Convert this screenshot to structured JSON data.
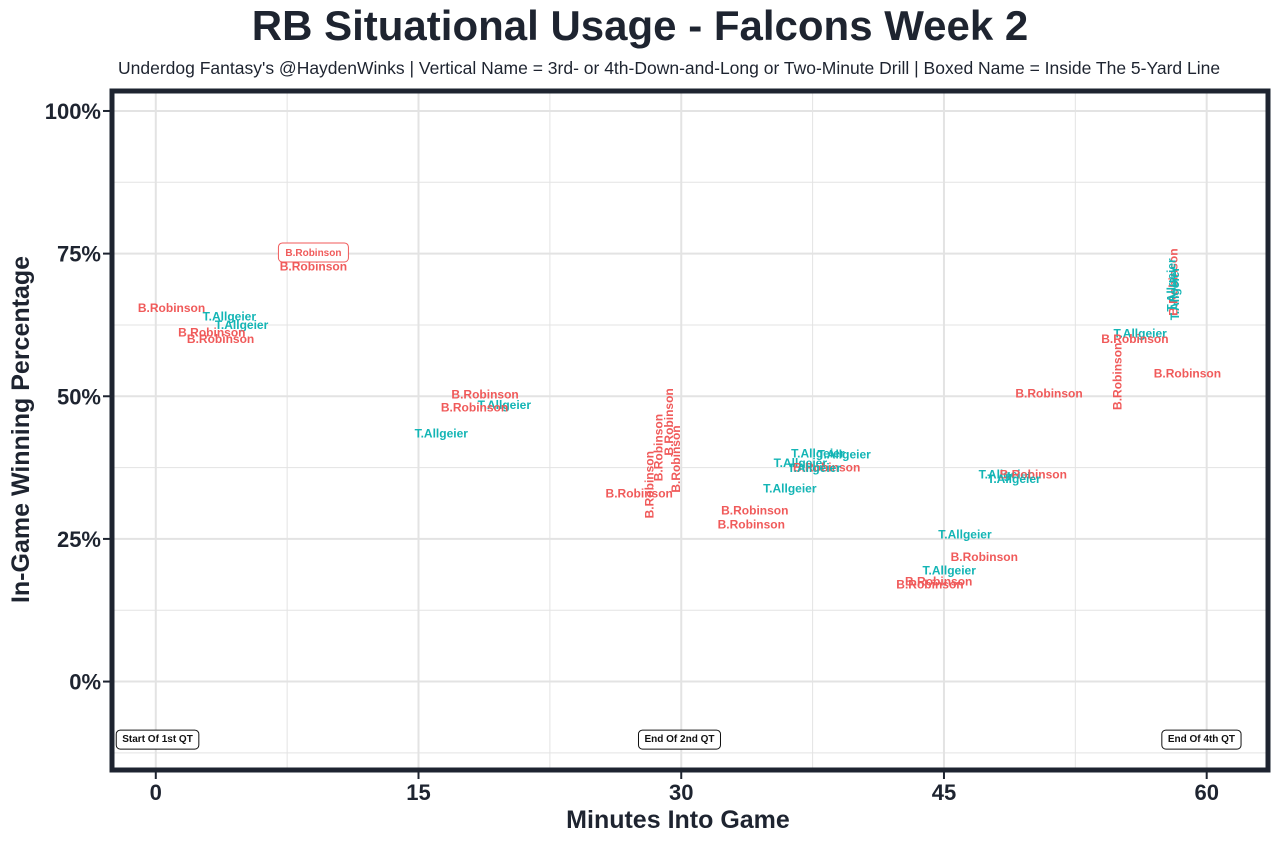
{
  "title": "RB Situational Usage - Falcons Week 2",
  "subtitle": "Underdog Fantasy's @HaydenWinks | Vertical Name = 3rd- or 4th-Down-and-Long or Two-Minute Drill | Boxed Name = Inside The 5-Yard Line",
  "colors": {
    "B.Robinson": "#f05a5a",
    "T.Allgeier": "#13b5b5",
    "frame": "#1e2430",
    "grid": "#e3e3e3"
  },
  "chart_data": {
    "type": "scatter",
    "title": "RB Situational Usage - Falcons Week 2",
    "subtitle": "Underdog Fantasy's @HaydenWinks | Vertical Name = 3rd- or 4th-Down-and-Long or Two-Minute Drill | Boxed Name = Inside The 5-Yard Line",
    "xlabel": "Minutes Into Game",
    "ylabel": "In-Game Winning Percentage",
    "xlim": [
      -2.5,
      63.5
    ],
    "ylim": [
      -0.155,
      1.035
    ],
    "xticks": [
      0,
      15,
      30,
      45,
      60
    ],
    "xtick_labels": [
      "0",
      "15",
      "30",
      "45",
      "60"
    ],
    "yticks": [
      0,
      0.25,
      0.5,
      0.75,
      1.0
    ],
    "ytick_labels": [
      "0%",
      "25%",
      "50%",
      "75%",
      "100%"
    ],
    "grid": true,
    "annotations": [
      {
        "x": 0.1,
        "y": -0.1,
        "text": "Start Of 1st QT"
      },
      {
        "x": 29.9,
        "y": -0.1,
        "text": "End Of 2nd QT"
      },
      {
        "x": 59.7,
        "y": -0.1,
        "text": "End Of 4th QT"
      }
    ],
    "points": [
      {
        "x": 0.9,
        "y": 0.655,
        "label": "B.Robinson",
        "style": "normal"
      },
      {
        "x": 4.2,
        "y": 0.64,
        "label": "T.Allgeier",
        "style": "normal"
      },
      {
        "x": 4.9,
        "y": 0.625,
        "label": "T.Allgeier",
        "style": "normal"
      },
      {
        "x": 3.2,
        "y": 0.612,
        "label": "B.Robinson",
        "style": "normal"
      },
      {
        "x": 3.7,
        "y": 0.6,
        "label": "B.Robinson",
        "style": "normal"
      },
      {
        "x": 9.0,
        "y": 0.752,
        "label": "B.Robinson",
        "style": "boxed"
      },
      {
        "x": 9.0,
        "y": 0.727,
        "label": "B.Robinson",
        "style": "normal"
      },
      {
        "x": 18.8,
        "y": 0.503,
        "label": "B.Robinson",
        "style": "normal"
      },
      {
        "x": 19.9,
        "y": 0.485,
        "label": "T.Allgeier",
        "style": "normal"
      },
      {
        "x": 18.2,
        "y": 0.48,
        "label": "B.Robinson",
        "style": "normal"
      },
      {
        "x": 16.3,
        "y": 0.435,
        "label": "T.Allgeier",
        "style": "normal"
      },
      {
        "x": 28.2,
        "y": 0.345,
        "label": "B.Robinson",
        "style": "vertical"
      },
      {
        "x": 28.7,
        "y": 0.41,
        "label": "B.Robinson",
        "style": "vertical"
      },
      {
        "x": 29.3,
        "y": 0.455,
        "label": "B.Robinson",
        "style": "vertical"
      },
      {
        "x": 29.7,
        "y": 0.39,
        "label": "B.Robinson",
        "style": "vertical"
      },
      {
        "x": 27.6,
        "y": 0.33,
        "label": "B.Robinson",
        "style": "normal"
      },
      {
        "x": 34.2,
        "y": 0.3,
        "label": "B.Robinson",
        "style": "normal"
      },
      {
        "x": 34.0,
        "y": 0.275,
        "label": "B.Robinson",
        "style": "normal"
      },
      {
        "x": 37.8,
        "y": 0.4,
        "label": "T.Allgeier",
        "style": "normal"
      },
      {
        "x": 39.3,
        "y": 0.398,
        "label": "T.Allgeier",
        "style": "normal"
      },
      {
        "x": 36.8,
        "y": 0.383,
        "label": "T.Allgeier",
        "style": "normal"
      },
      {
        "x": 38.3,
        "y": 0.375,
        "label": "B.Robinson",
        "style": "normal"
      },
      {
        "x": 37.6,
        "y": 0.374,
        "label": "T.Allgeier",
        "style": "normal"
      },
      {
        "x": 36.2,
        "y": 0.338,
        "label": "T.Allgeier",
        "style": "normal"
      },
      {
        "x": 48.5,
        "y": 0.363,
        "label": "T.Allgeier",
        "style": "normal"
      },
      {
        "x": 50.1,
        "y": 0.363,
        "label": "B.Robinson",
        "style": "normal"
      },
      {
        "x": 49.0,
        "y": 0.355,
        "label": "T.Allgeier",
        "style": "normal"
      },
      {
        "x": 46.2,
        "y": 0.258,
        "label": "T.Allgeier",
        "style": "normal"
      },
      {
        "x": 47.3,
        "y": 0.218,
        "label": "B.Robinson",
        "style": "normal"
      },
      {
        "x": 45.3,
        "y": 0.195,
        "label": "T.Allgeier",
        "style": "normal"
      },
      {
        "x": 44.7,
        "y": 0.175,
        "label": "B.Robinson",
        "style": "normal"
      },
      {
        "x": 44.2,
        "y": 0.17,
        "label": "B.Robinson",
        "style": "normal"
      },
      {
        "x": 51.0,
        "y": 0.505,
        "label": "B.Robinson",
        "style": "normal"
      },
      {
        "x": 56.2,
        "y": 0.61,
        "label": "T.Allgeier",
        "style": "normal"
      },
      {
        "x": 55.9,
        "y": 0.6,
        "label": "B.Robinson",
        "style": "normal"
      },
      {
        "x": 54.9,
        "y": 0.535,
        "label": "B.Robinson",
        "style": "vertical"
      },
      {
        "x": 58.9,
        "y": 0.54,
        "label": "B.Robinson",
        "style": "normal"
      },
      {
        "x": 58.1,
        "y": 0.7,
        "label": "B.Robinson",
        "style": "vertical"
      },
      {
        "x": 58.0,
        "y": 0.695,
        "label": "T.Allgeier",
        "style": "vertical"
      },
      {
        "x": 58.2,
        "y": 0.68,
        "label": "T.Allgeier",
        "style": "vertical"
      }
    ]
  }
}
